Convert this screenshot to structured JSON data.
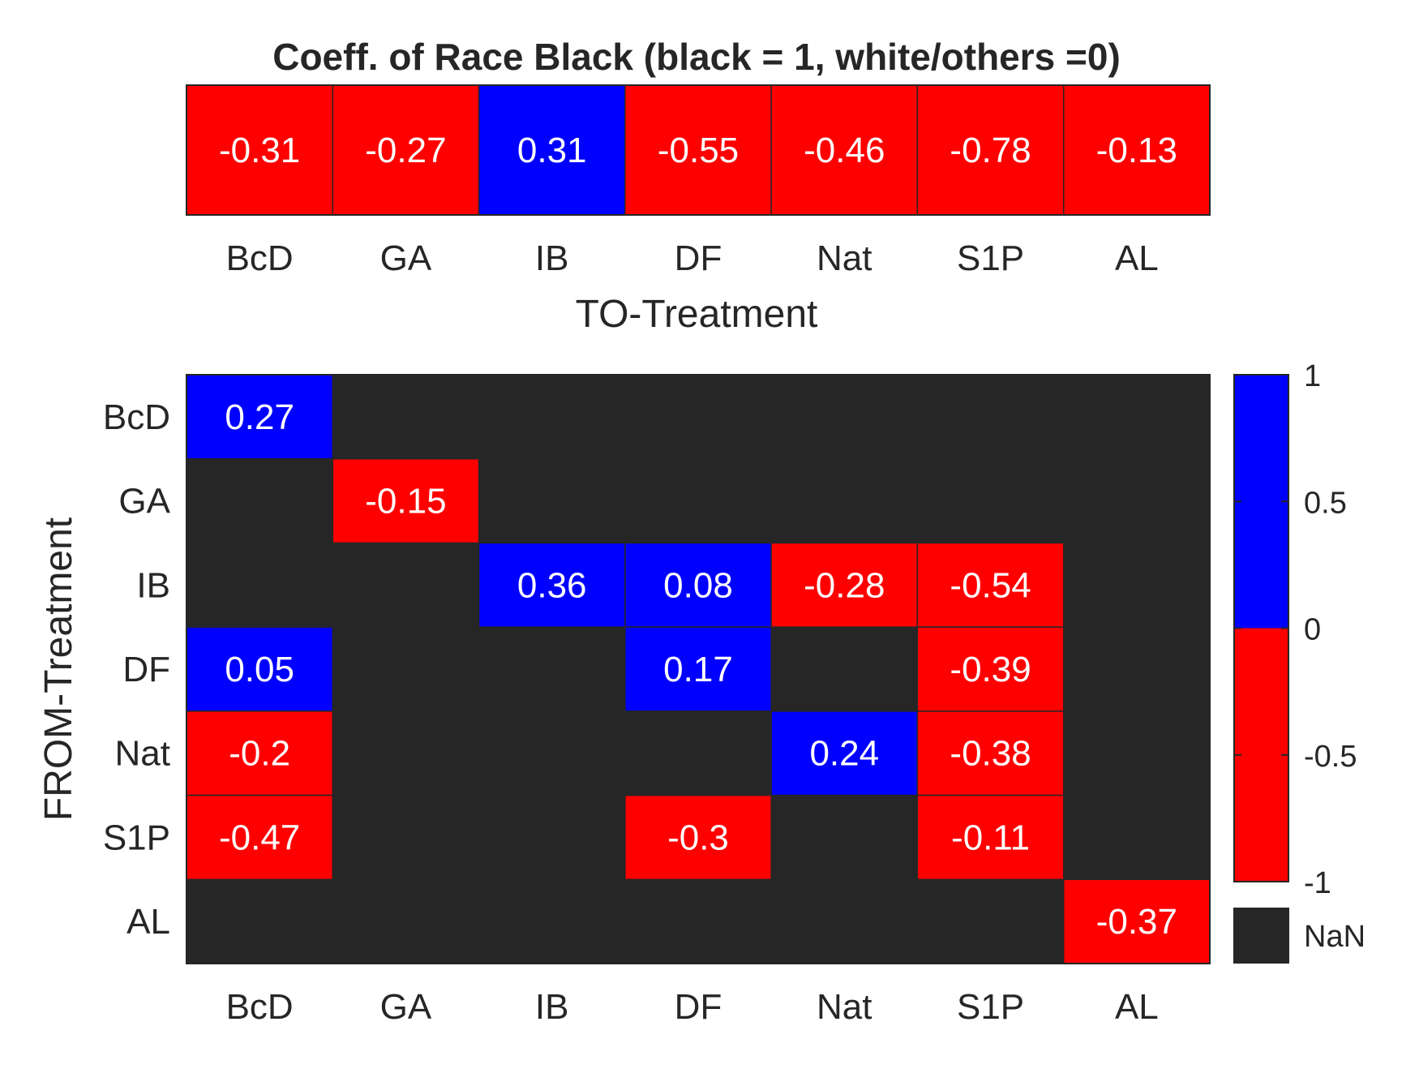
{
  "chart_data": [
    {
      "type": "heatmap",
      "title": "Coeff. of Race Black (black = 1, white/others =0)",
      "xlabel": "TO-Treatment",
      "ylabel": "",
      "categories": [
        "BcD",
        "GA",
        "IB",
        "DF",
        "Nat",
        "S1P",
        "AL"
      ],
      "values": [
        [
          -0.31,
          -0.27,
          0.31,
          -0.55,
          -0.46,
          -0.78,
          -0.13
        ]
      ],
      "labels": [
        [
          "-0.31",
          "-0.27",
          "0.31",
          "-0.55",
          "-0.46",
          "-0.78",
          "-0.13"
        ]
      ]
    },
    {
      "type": "heatmap",
      "title": "",
      "xlabel": "",
      "ylabel": "FROM-Treatment",
      "x_categories": [
        "BcD",
        "GA",
        "IB",
        "DF",
        "Nat",
        "S1P",
        "AL"
      ],
      "y_categories": [
        "BcD",
        "GA",
        "IB",
        "DF",
        "Nat",
        "S1P",
        "AL"
      ],
      "values": [
        [
          0.27,
          null,
          null,
          null,
          null,
          null,
          null
        ],
        [
          null,
          -0.15,
          null,
          null,
          null,
          null,
          null
        ],
        [
          null,
          null,
          0.36,
          0.08,
          -0.28,
          -0.54,
          null
        ],
        [
          0.05,
          null,
          null,
          0.17,
          null,
          -0.39,
          null
        ],
        [
          -0.2,
          null,
          null,
          null,
          0.24,
          -0.38,
          null
        ],
        [
          -0.47,
          null,
          null,
          -0.3,
          null,
          -0.11,
          null
        ],
        [
          null,
          null,
          null,
          null,
          null,
          null,
          -0.37
        ]
      ],
      "labels": [
        [
          "0.27",
          null,
          null,
          null,
          null,
          null,
          null
        ],
        [
          null,
          "-0.15",
          null,
          null,
          null,
          null,
          null
        ],
        [
          null,
          null,
          "0.36",
          "0.08",
          "-0.28",
          "-0.54",
          null
        ],
        [
          "0.05",
          null,
          null,
          "0.17",
          null,
          "-0.39",
          null
        ],
        [
          "-0.2",
          null,
          null,
          null,
          "0.24",
          "-0.38",
          null
        ],
        [
          "-0.47",
          null,
          null,
          "-0.3",
          null,
          "-0.11",
          null
        ],
        [
          null,
          null,
          null,
          null,
          null,
          null,
          "-0.37"
        ]
      ],
      "colorbar": {
        "range": [
          -1,
          1
        ],
        "ticks": [
          1,
          0.5,
          0,
          -0.5,
          -1
        ],
        "tick_labels": [
          "1",
          "0.5",
          "0",
          "-0.5",
          "-1"
        ],
        "nan_label": "NaN"
      }
    }
  ],
  "colors": {
    "positive": "#0000ff",
    "negative": "#ff0000",
    "nan": "#262626",
    "text": "#262626",
    "cell_text": "#ffffff"
  }
}
